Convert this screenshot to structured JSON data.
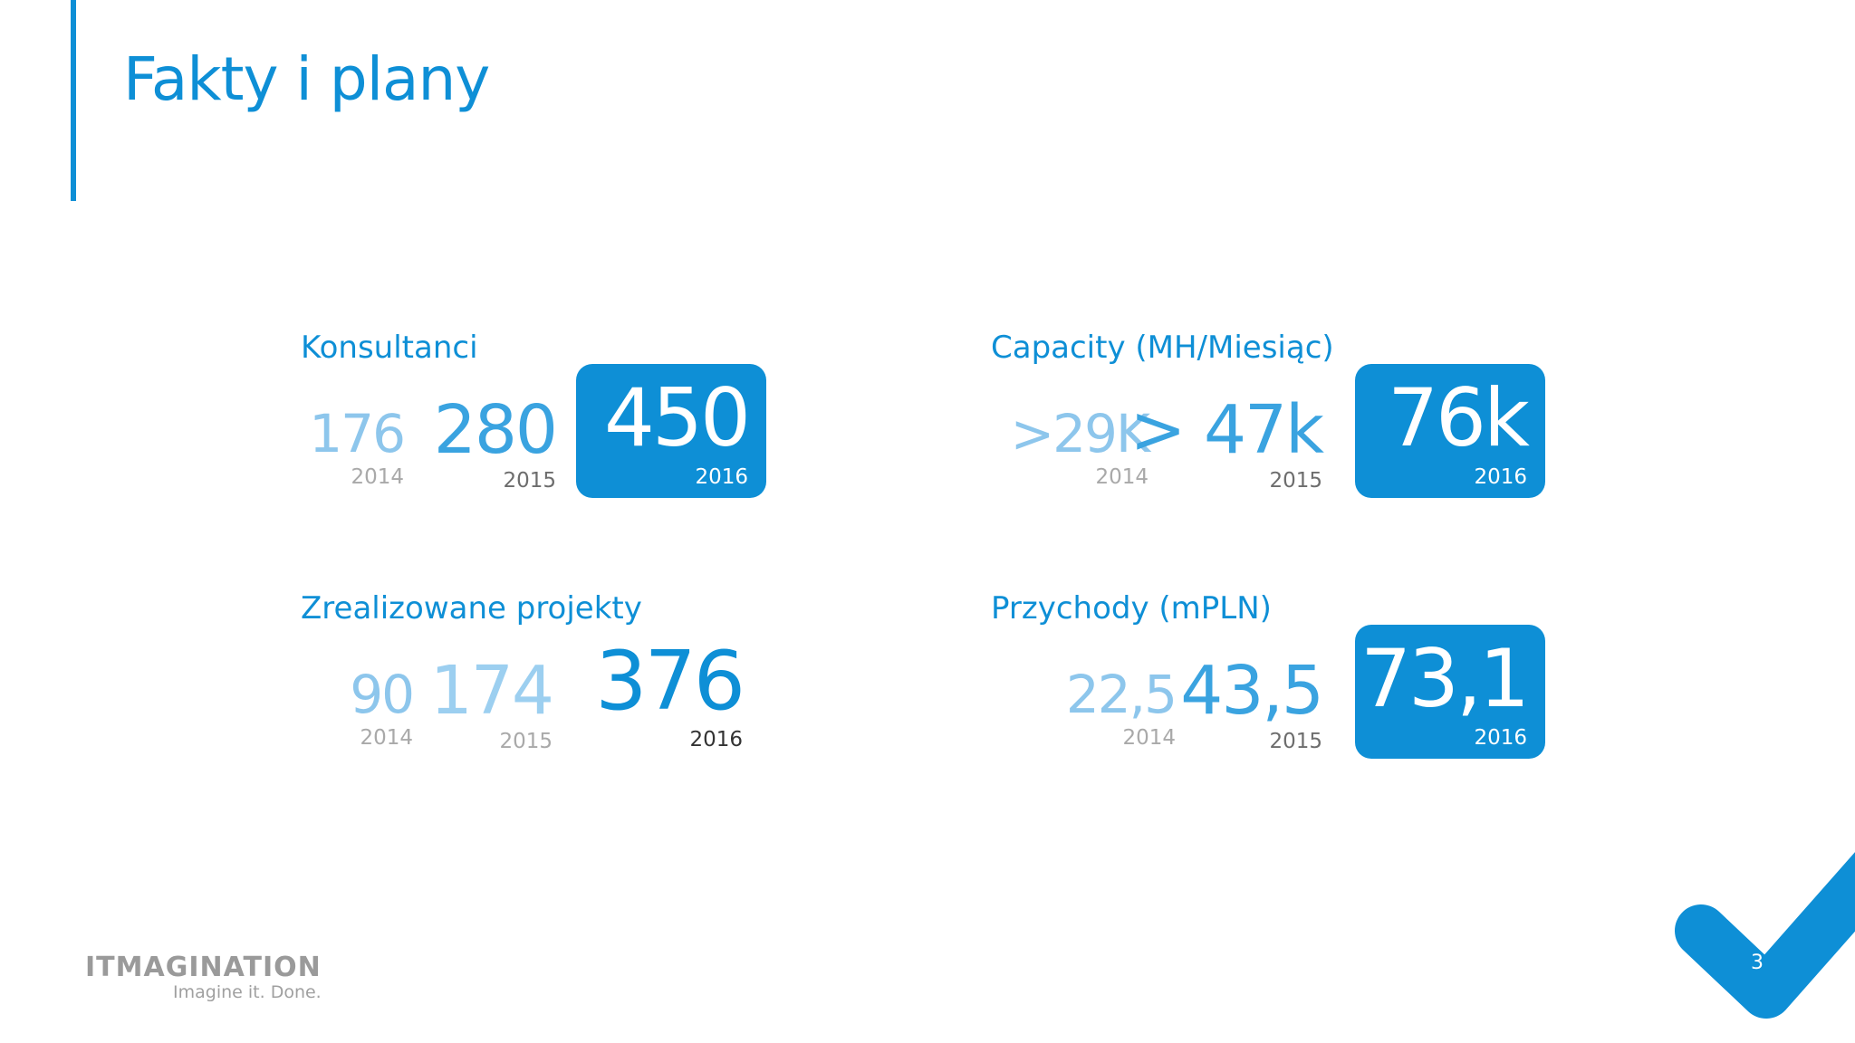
{
  "slide": {
    "title": "Fakty i plany",
    "page_number": "3"
  },
  "colors": {
    "accent": "#0e8fd6",
    "accent_light": "#8dc6ec",
    "muted_text": "#a9a9a9"
  },
  "consultants": {
    "label": "Konsultanci",
    "y2014": {
      "value": "176",
      "year": "2014"
    },
    "y2015": {
      "value": "280",
      "year": "2015"
    },
    "y2016": {
      "value": "450",
      "year": "2016"
    }
  },
  "capacity": {
    "label": "Capacity (MH/Miesiąc)",
    "y2014": {
      "value": ">29K",
      "year": "2014"
    },
    "y2015": {
      "value": "> 47k",
      "year": "2015"
    },
    "y2016": {
      "value": "76k",
      "year": "2016"
    }
  },
  "projects": {
    "label": "Zrealizowane projekty",
    "y2014": {
      "value": "90",
      "year": "2014"
    },
    "y2015": {
      "value": "174",
      "year": "2015"
    },
    "y2016": {
      "value": "376",
      "year": "2016"
    }
  },
  "revenue": {
    "label": "Przychody (mPLN)",
    "y2014": {
      "value": "22,5",
      "year": "2014"
    },
    "y2015": {
      "value": "43,5",
      "year": "2015"
    },
    "y2016": {
      "value": "73,1",
      "year": "2016"
    }
  },
  "logo": {
    "name": "ITMAGINATION",
    "tagline": "Imagine it. Done."
  },
  "icons": {
    "corner_mark": "checkmark-icon"
  }
}
